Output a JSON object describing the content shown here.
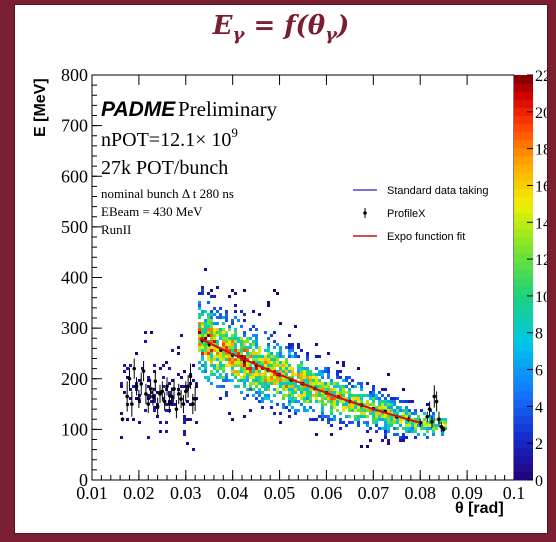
{
  "page": {
    "title_main": "E",
    "title_sub1": "γ",
    "title_eq": " = f(θ",
    "title_sub2": "γ",
    "title_close": ")"
  },
  "colors": {
    "frame": "#7a1f32",
    "title": "#7a1f32",
    "fit_line": "#d01010",
    "standard_line": "#5b3fd0",
    "points": "#000000"
  },
  "info": {
    "experiment": "PADME",
    "status": "Preliminary",
    "npot_prefix": "nPOT=12.1× 10",
    "npot_exp": "9",
    "pot_bunch": "27k POT/bunch",
    "bunch": "nominal bunch Δ t 280 ns",
    "ebeam": "EBeam = 430 MeV",
    "run": "RunII"
  },
  "chart_data": {
    "type": "heatmap",
    "title": "",
    "xlabel": "θ [rad]",
    "ylabel": "E [MeV]",
    "xlim": [
      0.01,
      0.1
    ],
    "ylim": [
      0,
      800
    ],
    "x_ticks": [
      "0.01",
      "0.02",
      "0.03",
      "0.04",
      "0.05",
      "0.06",
      "0.07",
      "0.08",
      "0.09",
      "0.1"
    ],
    "y_ticks": [
      "0",
      "100",
      "200",
      "300",
      "400",
      "500",
      "600",
      "700",
      "800"
    ],
    "z_ticks": [
      "0",
      "2",
      "4",
      "6",
      "8",
      "10",
      "12",
      "14",
      "16",
      "18",
      "20",
      "22"
    ],
    "zlim": [
      0,
      22
    ],
    "legend": {
      "placement": "top-right",
      "entries": [
        "Standard data taking",
        "ProfileX",
        "Expo function fit"
      ]
    },
    "fit": {
      "name": "Expo function fit",
      "x": [
        0.033,
        0.036,
        0.04,
        0.045,
        0.05,
        0.055,
        0.06,
        0.065,
        0.07,
        0.075,
        0.08
      ],
      "y": [
        280,
        266,
        248,
        228,
        208,
        190,
        172,
        155,
        140,
        126,
        113
      ]
    },
    "profile": {
      "name": "ProfileX",
      "x": [
        0.0165,
        0.0175,
        0.018,
        0.0185,
        0.019,
        0.0195,
        0.02,
        0.0205,
        0.021,
        0.0215,
        0.022,
        0.0225,
        0.023,
        0.0235,
        0.024,
        0.0245,
        0.025,
        0.0255,
        0.026,
        0.0265,
        0.027,
        0.0275,
        0.028,
        0.0285,
        0.029,
        0.0295,
        0.03,
        0.0305,
        0.031,
        0.0315,
        0.032,
        0.0335,
        0.035,
        0.0375,
        0.04,
        0.0425,
        0.045,
        0.0475,
        0.05,
        0.0525,
        0.055,
        0.0575,
        0.06,
        0.0625,
        0.065,
        0.0675,
        0.07,
        0.0725,
        0.075,
        0.0775,
        0.08,
        0.0815,
        0.082,
        0.0825,
        0.083,
        0.0835,
        0.084,
        0.0845,
        0.085
      ],
      "y": [
        120,
        165,
        200,
        150,
        220,
        185,
        160,
        190,
        215,
        170,
        150,
        180,
        165,
        195,
        145,
        170,
        175,
        155,
        185,
        150,
        165,
        180,
        140,
        170,
        160,
        150,
        175,
        185,
        205,
        150,
        160,
        276,
        268,
        257,
        247,
        238,
        227,
        218,
        208,
        198,
        190,
        181,
        172,
        164,
        155,
        148,
        141,
        135,
        125,
        120,
        113,
        125,
        140,
        115,
        165,
        155,
        120,
        105,
        100
      ],
      "yerr": [
        4,
        30,
        22,
        25,
        20,
        18,
        18,
        22,
        20,
        20,
        18,
        20,
        18,
        20,
        18,
        18,
        20,
        18,
        18,
        18,
        18,
        20,
        18,
        20,
        18,
        18,
        20,
        22,
        25,
        20,
        24,
        6,
        5,
        4,
        4,
        4,
        3,
        3,
        3,
        3,
        3,
        3,
        3,
        3,
        3,
        3,
        3,
        3,
        4,
        5,
        8,
        10,
        15,
        12,
        22,
        20,
        15,
        10,
        6
      ]
    }
  }
}
